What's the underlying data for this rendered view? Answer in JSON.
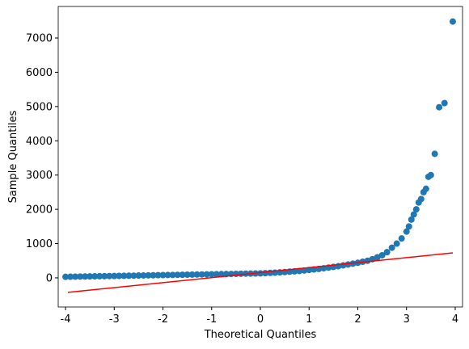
{
  "chart_data": {
    "type": "scatter",
    "xlabel": "Theoretical Quantiles",
    "ylabel": "Sample Quantiles",
    "color": "#1f77b4",
    "x": [
      -4.0,
      -3.9,
      -3.8,
      -3.7,
      -3.6,
      -3.5,
      -3.4,
      -3.3,
      -3.2,
      -3.1,
      -3.0,
      -2.9,
      -2.8,
      -2.7,
      -2.6,
      -2.5,
      -2.4,
      -2.3,
      -2.2,
      -2.1,
      -2.0,
      -1.9,
      -1.8,
      -1.7,
      -1.6,
      -1.5,
      -1.4,
      -1.3,
      -1.2,
      -1.1,
      -1.0,
      -0.9,
      -0.8,
      -0.7,
      -0.6,
      -0.5,
      -0.4,
      -0.3,
      -0.2,
      -0.1,
      0.0,
      0.1,
      0.2,
      0.3,
      0.4,
      0.5,
      0.6,
      0.7,
      0.8,
      0.9,
      1.0,
      1.1,
      1.2,
      1.3,
      1.4,
      1.5,
      1.6,
      1.7,
      1.8,
      1.9,
      2.0,
      2.1,
      2.2,
      2.3,
      2.4,
      2.5,
      2.6,
      2.7,
      2.8,
      2.9,
      3.0,
      3.05,
      3.1,
      3.15,
      3.2,
      3.25,
      3.3,
      3.35,
      3.4,
      3.45,
      3.5,
      3.58,
      3.67,
      3.78,
      3.95
    ],
    "values": [
      30,
      33,
      35,
      38,
      40,
      43,
      45,
      48,
      50,
      53,
      55,
      58,
      60,
      63,
      65,
      68,
      70,
      73,
      75,
      78,
      80,
      83,
      85,
      88,
      90,
      93,
      95,
      98,
      100,
      103,
      105,
      108,
      110,
      113,
      115,
      118,
      120,
      123,
      125,
      128,
      130,
      137,
      145,
      152,
      160,
      170,
      180,
      190,
      200,
      215,
      230,
      245,
      260,
      280,
      300,
      320,
      340,
      365,
      390,
      415,
      440,
      470,
      500,
      545,
      600,
      660,
      750,
      880,
      1000,
      1150,
      1350,
      1500,
      1700,
      1850,
      2000,
      2200,
      2300,
      2500,
      2600,
      2950,
      3000,
      3620,
      4980,
      5100,
      7480
    ],
    "line": {
      "x": [
        -3.95,
        3.95
      ],
      "values": [
        -424,
        730
      ],
      "color": "#ff0000"
    },
    "xlim": [
      -4.15,
      4.15
    ],
    "ylim": [
      -850,
      7920
    ],
    "xticks": [
      -4,
      -3,
      -2,
      -1,
      0,
      1,
      2,
      3,
      4
    ],
    "yticks": [
      0,
      1000,
      2000,
      3000,
      4000,
      5000,
      6000,
      7000
    ]
  }
}
